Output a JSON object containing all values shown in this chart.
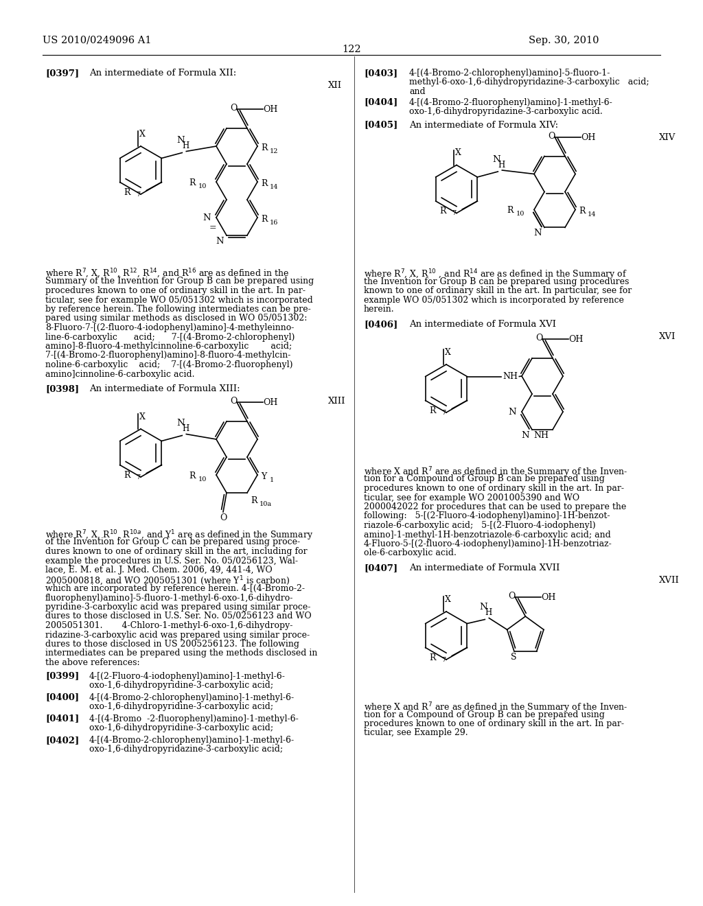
{
  "page_number": "122",
  "patent_number": "US 2010/0249096 A1",
  "patent_date": "Sep. 30, 2010",
  "background_color": "#ffffff"
}
